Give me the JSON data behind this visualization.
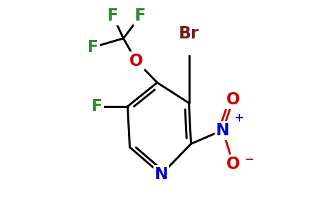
{
  "background_color": "#ffffff",
  "figsize": [
    4.84,
    3.0
  ],
  "dpi": 100,
  "colors": {
    "bond": "#000000",
    "N": "#0000cc",
    "O": "#cc0000",
    "Br": "#7a1a1a",
    "F": "#2d8b2d",
    "bg": "#ffffff"
  },
  "font_size": 17,
  "font_size_small": 12,
  "lw": 2.2
}
